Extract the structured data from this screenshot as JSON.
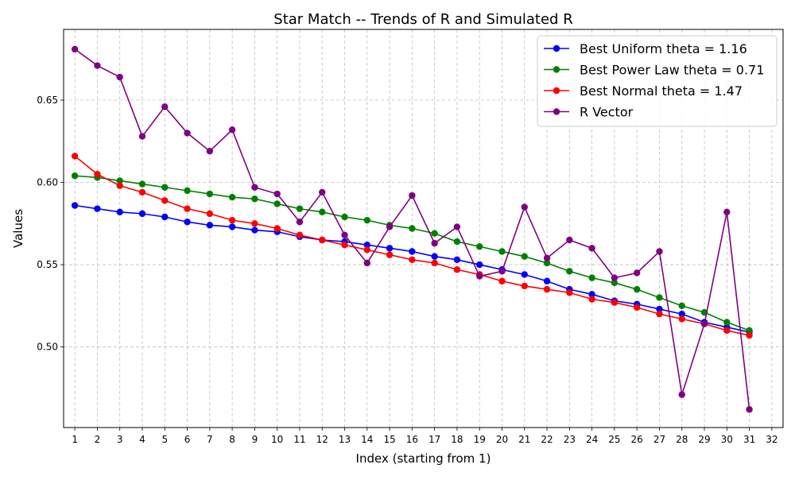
{
  "chart_data": {
    "type": "line",
    "title": "Star Match -- Trends of R and Simulated R",
    "xlabel": "Index (starting from 1)",
    "ylabel": "Values",
    "x_ticks": [
      1,
      2,
      3,
      4,
      5,
      6,
      7,
      8,
      9,
      10,
      11,
      12,
      13,
      14,
      15,
      16,
      17,
      18,
      19,
      20,
      21,
      22,
      23,
      24,
      25,
      26,
      27,
      28,
      29,
      30,
      31,
      32
    ],
    "xlim": [
      0.5,
      32.5
    ],
    "ylim": [
      0.451,
      0.693
    ],
    "y_ticks": [
      "0.50",
      "0.55",
      "0.60",
      "0.65"
    ],
    "grid": true,
    "legend_position": "top-right",
    "x": [
      1,
      2,
      3,
      4,
      5,
      6,
      7,
      8,
      9,
      10,
      11,
      12,
      13,
      14,
      15,
      16,
      17,
      18,
      19,
      20,
      21,
      22,
      23,
      24,
      25,
      26,
      27,
      28,
      29,
      30,
      31
    ],
    "series": [
      {
        "name": "Best Uniform theta = 1.16",
        "color": "#0000ff",
        "values": [
          0.586,
          0.584,
          0.582,
          0.581,
          0.579,
          0.576,
          0.574,
          0.573,
          0.571,
          0.57,
          0.567,
          0.565,
          0.564,
          0.562,
          0.56,
          0.558,
          0.555,
          0.553,
          0.55,
          0.547,
          0.544,
          0.54,
          0.535,
          0.532,
          0.528,
          0.526,
          0.523,
          0.52,
          0.515,
          0.512,
          0.509
        ]
      },
      {
        "name": "Best Power Law theta = 0.71",
        "color": "#008000",
        "values": [
          0.604,
          0.603,
          0.601,
          0.599,
          0.597,
          0.595,
          0.593,
          0.591,
          0.59,
          0.587,
          0.584,
          0.582,
          0.579,
          0.577,
          0.574,
          0.572,
          0.569,
          0.564,
          0.561,
          0.558,
          0.555,
          0.551,
          0.546,
          0.542,
          0.539,
          0.535,
          0.53,
          0.525,
          0.521,
          0.515,
          0.51
        ]
      },
      {
        "name": "Best Normal theta = 1.47",
        "color": "#ff0000",
        "values": [
          0.616,
          0.605,
          0.598,
          0.594,
          0.589,
          0.584,
          0.581,
          0.577,
          0.575,
          0.572,
          0.568,
          0.565,
          0.562,
          0.559,
          0.556,
          0.553,
          0.551,
          0.547,
          0.544,
          0.54,
          0.537,
          0.535,
          0.533,
          0.529,
          0.527,
          0.524,
          0.52,
          0.517,
          0.514,
          0.51,
          0.507
        ]
      },
      {
        "name": "R Vector",
        "color": "#800080",
        "values": [
          0.681,
          0.671,
          0.664,
          0.628,
          0.646,
          0.63,
          0.619,
          0.632,
          0.597,
          0.593,
          0.576,
          0.594,
          0.568,
          0.551,
          0.573,
          0.592,
          0.563,
          0.573,
          0.543,
          0.546,
          0.585,
          0.554,
          0.565,
          0.56,
          0.542,
          0.545,
          0.558,
          0.471,
          0.514,
          0.582,
          0.462
        ]
      }
    ]
  }
}
